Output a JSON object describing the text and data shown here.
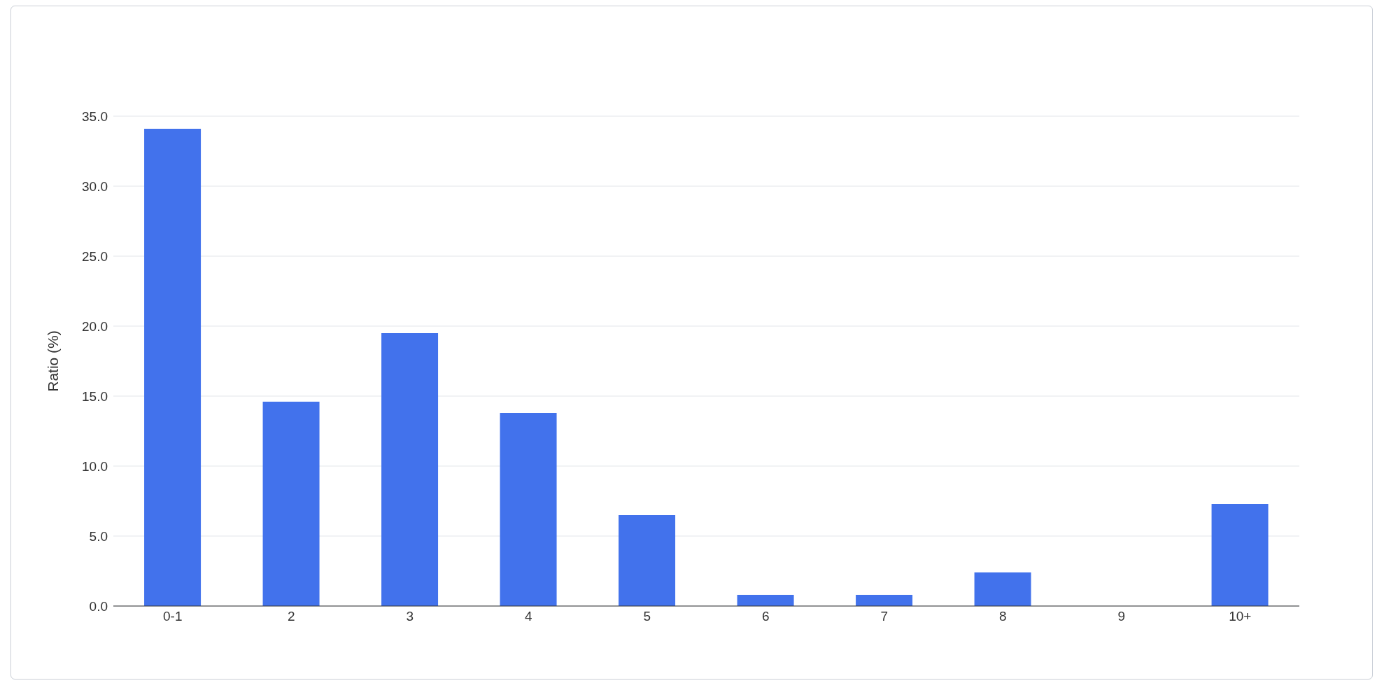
{
  "chart_data": {
    "type": "bar",
    "ylabel": "Ratio (%)",
    "categories": [
      "0-1",
      "2",
      "3",
      "4",
      "5",
      "6",
      "7",
      "8",
      "9",
      "10+"
    ],
    "values": [
      34.1,
      14.6,
      19.5,
      13.8,
      6.5,
      0.8,
      0.8,
      2.4,
      0,
      7.3
    ],
    "color": "#4272ec",
    "ylim": [
      0,
      35
    ],
    "yticks": [
      {
        "value": 0,
        "label": "0.0"
      },
      {
        "value": 5,
        "label": "5.0"
      },
      {
        "value": 10,
        "label": "10.0"
      },
      {
        "value": 15,
        "label": "15.0"
      },
      {
        "value": 20,
        "label": "20.0"
      },
      {
        "value": 25,
        "label": "25.0"
      },
      {
        "value": 30,
        "label": "30.0"
      },
      {
        "value": 35,
        "label": "35.0"
      }
    ],
    "grid": "y",
    "legend": false
  }
}
